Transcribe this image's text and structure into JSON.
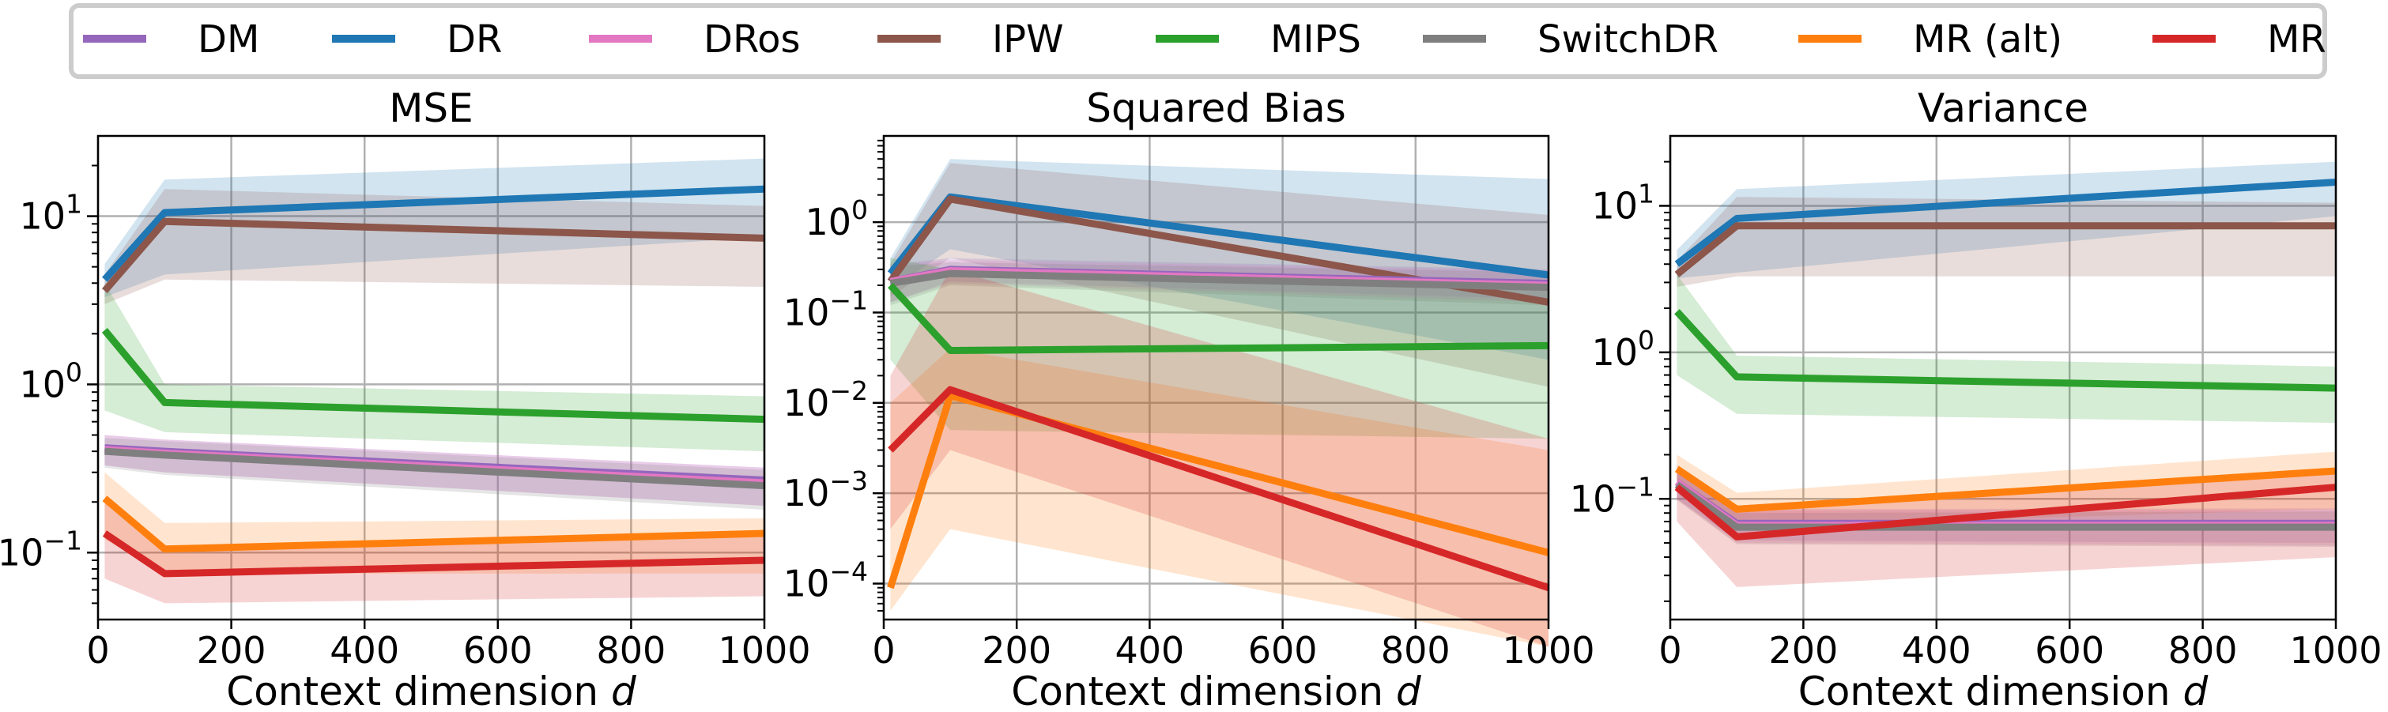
{
  "legend": {
    "entries": [
      {
        "name": "DM",
        "color": "#9467bd"
      },
      {
        "name": "DR",
        "color": "#1f77b4"
      },
      {
        "name": "DRos",
        "color": "#e377c2"
      },
      {
        "name": "IPW",
        "color": "#8c564b"
      },
      {
        "name": "MIPS",
        "color": "#2ca02c"
      },
      {
        "name": "SwitchDR",
        "color": "#7f7f7f"
      },
      {
        "name": "MR (alt)",
        "color": "#ff7f0e"
      },
      {
        "name": "MR",
        "color": "#d62728"
      }
    ],
    "placement": "top-center"
  },
  "chart_data": [
    {
      "type": "line",
      "title": "MSE",
      "xlabel": "Context dimension d",
      "ylabel": "",
      "yscale": "log",
      "xlim": [
        0,
        1000
      ],
      "ylim": [
        0.04,
        30
      ],
      "grid": true,
      "xticks": [
        0,
        200,
        400,
        600,
        800,
        1000
      ],
      "yticks": [
        {
          "value": 0.1,
          "base": "10",
          "exp": "−1"
        },
        {
          "value": 1,
          "base": "10",
          "exp": "0"
        },
        {
          "value": 10,
          "base": "10",
          "exp": "1"
        }
      ],
      "x": [
        10,
        100,
        1000
      ],
      "series": [
        {
          "name": "DR",
          "values": [
            4.2,
            10.5,
            14.5
          ],
          "low": [
            3.3,
            4.5,
            7.5
          ],
          "high": [
            5.2,
            16.5,
            22
          ]
        },
        {
          "name": "IPW",
          "values": [
            3.6,
            9.3,
            7.4
          ],
          "low": [
            3.0,
            4.2,
            3.8
          ],
          "high": [
            4.5,
            14.5,
            11.5
          ]
        },
        {
          "name": "MIPS",
          "values": [
            2.1,
            0.78,
            0.62
          ],
          "low": [
            0.7,
            0.52,
            0.4
          ],
          "high": [
            4.0,
            1.0,
            0.85
          ]
        },
        {
          "name": "DM",
          "values": [
            0.42,
            0.4,
            0.27
          ],
          "low": [
            0.33,
            0.3,
            0.19
          ],
          "high": [
            0.5,
            0.47,
            0.32
          ]
        },
        {
          "name": "DRos",
          "values": [
            0.41,
            0.39,
            0.26
          ],
          "low": [
            0.33,
            0.3,
            0.19
          ],
          "high": [
            0.5,
            0.47,
            0.32
          ]
        },
        {
          "name": "SwitchDR",
          "values": [
            0.4,
            0.38,
            0.25
          ],
          "low": [
            0.32,
            0.29,
            0.18
          ],
          "high": [
            0.48,
            0.46,
            0.31
          ]
        },
        {
          "name": "MR (alt)",
          "values": [
            0.21,
            0.105,
            0.13
          ],
          "low": [
            0.12,
            0.075,
            0.075
          ],
          "high": [
            0.3,
            0.15,
            0.16
          ]
        },
        {
          "name": "MR",
          "values": [
            0.13,
            0.075,
            0.09
          ],
          "low": [
            0.07,
            0.05,
            0.055
          ],
          "high": [
            0.2,
            0.11,
            0.125
          ]
        }
      ]
    },
    {
      "type": "line",
      "title": "Squared Bias",
      "xlabel": "Context dimension d",
      "ylabel": "",
      "yscale": "log",
      "xlim": [
        0,
        1000
      ],
      "ylim": [
        4e-05,
        9
      ],
      "grid": true,
      "xticks": [
        0,
        200,
        400,
        600,
        800,
        1000
      ],
      "yticks": [
        {
          "value": 0.0001,
          "base": "10",
          "exp": "−4"
        },
        {
          "value": 0.001,
          "base": "10",
          "exp": "−3"
        },
        {
          "value": 0.01,
          "base": "10",
          "exp": "−2"
        },
        {
          "value": 0.1,
          "base": "10",
          "exp": "−1"
        },
        {
          "value": 1,
          "base": "10",
          "exp": "0"
        }
      ],
      "x": [
        10,
        100,
        1000
      ],
      "series": [
        {
          "name": "DR",
          "values": [
            0.27,
            1.9,
            0.26
          ],
          "low": [
            0.18,
            0.5,
            0.03
          ],
          "high": [
            0.4,
            5.0,
            3.0
          ]
        },
        {
          "name": "IPW",
          "values": [
            0.22,
            1.8,
            0.13
          ],
          "low": [
            0.15,
            0.4,
            0.015
          ],
          "high": [
            0.35,
            4.5,
            1.2
          ]
        },
        {
          "name": "DM",
          "values": [
            0.22,
            0.3,
            0.21
          ],
          "low": [
            0.13,
            0.22,
            0.14
          ],
          "high": [
            0.34,
            0.4,
            0.3
          ]
        },
        {
          "name": "DRos",
          "values": [
            0.22,
            0.29,
            0.2
          ],
          "low": [
            0.13,
            0.21,
            0.13
          ],
          "high": [
            0.33,
            0.38,
            0.29
          ]
        },
        {
          "name": "SwitchDR",
          "values": [
            0.21,
            0.27,
            0.19
          ],
          "low": [
            0.12,
            0.2,
            0.12
          ],
          "high": [
            0.32,
            0.36,
            0.28
          ]
        },
        {
          "name": "MIPS",
          "values": [
            0.2,
            0.038,
            0.043
          ],
          "low": [
            0.03,
            0.005,
            0.004
          ],
          "high": [
            0.4,
            0.3,
            0.2
          ]
        },
        {
          "name": "MR (alt)",
          "values": [
            9e-05,
            0.012,
            0.00022
          ],
          "low": [
            5e-05,
            0.0004,
            2e-05
          ],
          "high": [
            0.01,
            0.04,
            0.003
          ]
        },
        {
          "name": "MR",
          "values": [
            0.003,
            0.014,
            9e-05
          ],
          "low": [
            0.0004,
            0.003,
            2e-05
          ],
          "high": [
            0.02,
            0.3,
            0.004
          ]
        }
      ]
    },
    {
      "type": "line",
      "title": "Variance",
      "xlabel": "Context dimension d",
      "ylabel": "",
      "yscale": "log",
      "xlim": [
        0,
        1000
      ],
      "ylim": [
        0.015,
        30
      ],
      "grid": true,
      "xticks": [
        0,
        200,
        400,
        600,
        800,
        1000
      ],
      "yticks": [
        {
          "value": 0.1,
          "base": "10",
          "exp": "−1"
        },
        {
          "value": 1,
          "base": "10",
          "exp": "0"
        },
        {
          "value": 10,
          "base": "10",
          "exp": "1"
        }
      ],
      "x": [
        10,
        100,
        1000
      ],
      "series": [
        {
          "name": "DR",
          "values": [
            4.0,
            8.2,
            14.5
          ],
          "low": [
            3.2,
            3.5,
            8.5
          ],
          "high": [
            5.0,
            13.0,
            20.0
          ]
        },
        {
          "name": "IPW",
          "values": [
            3.4,
            7.3,
            7.3
          ],
          "low": [
            2.8,
            3.3,
            3.3
          ],
          "high": [
            4.2,
            11.5,
            10.5
          ]
        },
        {
          "name": "MIPS",
          "values": [
            1.9,
            0.68,
            0.57
          ],
          "low": [
            0.7,
            0.38,
            0.33
          ],
          "high": [
            3.4,
            0.95,
            0.8
          ]
        },
        {
          "name": "MR (alt)",
          "values": [
            0.16,
            0.085,
            0.155
          ],
          "low": [
            0.12,
            0.065,
            0.085
          ],
          "high": [
            0.2,
            0.11,
            0.21
          ]
        },
        {
          "name": "DM",
          "values": [
            0.13,
            0.068,
            0.068
          ],
          "low": [
            0.1,
            0.052,
            0.05
          ],
          "high": [
            0.16,
            0.085,
            0.086
          ]
        },
        {
          "name": "DRos",
          "values": [
            0.13,
            0.066,
            0.066
          ],
          "low": [
            0.1,
            0.05,
            0.048
          ],
          "high": [
            0.16,
            0.083,
            0.084
          ]
        },
        {
          "name": "SwitchDR",
          "values": [
            0.125,
            0.064,
            0.064
          ],
          "low": [
            0.098,
            0.049,
            0.047
          ],
          "high": [
            0.155,
            0.08,
            0.082
          ]
        },
        {
          "name": "MR",
          "values": [
            0.12,
            0.055,
            0.12
          ],
          "low": [
            0.07,
            0.025,
            0.04
          ],
          "high": [
            0.17,
            0.09,
            0.16
          ]
        }
      ]
    }
  ]
}
